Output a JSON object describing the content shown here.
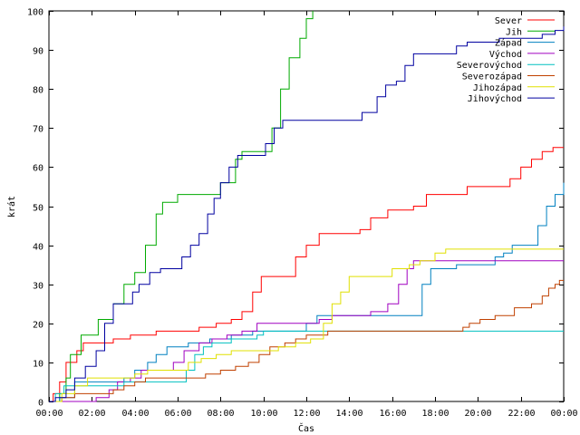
{
  "chart_data": {
    "type": "line",
    "title": "",
    "xlabel": "Čas",
    "ylabel": "krát",
    "xlim": [
      0,
      24
    ],
    "ylim": [
      0,
      100
    ],
    "x_ticks": [
      0,
      2,
      4,
      6,
      8,
      10,
      12,
      14,
      16,
      18,
      20,
      22,
      24
    ],
    "x_tick_labels": [
      "00:00",
      "02:00",
      "04:00",
      "06:00",
      "08:00",
      "10:00",
      "12:00",
      "14:00",
      "16:00",
      "18:00",
      "20:00",
      "22:00",
      "00:00"
    ],
    "y_ticks": [
      0,
      10,
      20,
      30,
      40,
      50,
      60,
      70,
      80,
      90,
      100
    ],
    "grid": false,
    "legend_position": "top-right",
    "step": true,
    "series": [
      {
        "name": "Sever",
        "color": "#ff0000",
        "points": [
          [
            0,
            0
          ],
          [
            0.2,
            2
          ],
          [
            0.5,
            5
          ],
          [
            0.8,
            10
          ],
          [
            1.3,
            13
          ],
          [
            1.6,
            15
          ],
          [
            2.5,
            15
          ],
          [
            3.0,
            16
          ],
          [
            3.8,
            17
          ],
          [
            5.0,
            18
          ],
          [
            7.0,
            19
          ],
          [
            7.8,
            20
          ],
          [
            8.5,
            21
          ],
          [
            9.0,
            23
          ],
          [
            9.5,
            28
          ],
          [
            9.9,
            32
          ],
          [
            11.0,
            32
          ],
          [
            11.5,
            37
          ],
          [
            12.0,
            40
          ],
          [
            12.6,
            43
          ],
          [
            14.5,
            44
          ],
          [
            15.0,
            47
          ],
          [
            15.8,
            49
          ],
          [
            17.0,
            50
          ],
          [
            17.6,
            53
          ],
          [
            19.5,
            55
          ],
          [
            21.5,
            57
          ],
          [
            22.0,
            60
          ],
          [
            22.5,
            62
          ],
          [
            23.0,
            64
          ],
          [
            23.5,
            65
          ],
          [
            24.0,
            65
          ]
        ]
      },
      {
        "name": "Jih",
        "color": "#00aa00",
        "points": [
          [
            0,
            0
          ],
          [
            0.5,
            2
          ],
          [
            0.8,
            6
          ],
          [
            1.0,
            12
          ],
          [
            1.5,
            17
          ],
          [
            2.0,
            17
          ],
          [
            2.3,
            21
          ],
          [
            3.0,
            25
          ],
          [
            3.5,
            30
          ],
          [
            4.0,
            33
          ],
          [
            4.5,
            40
          ],
          [
            5.0,
            48
          ],
          [
            5.3,
            51
          ],
          [
            6.0,
            53
          ],
          [
            8.0,
            56
          ],
          [
            8.7,
            62
          ],
          [
            9.0,
            64
          ],
          [
            10.0,
            64
          ],
          [
            10.4,
            70
          ],
          [
            10.8,
            80
          ],
          [
            11.2,
            88
          ],
          [
            11.7,
            93
          ],
          [
            12.0,
            98
          ],
          [
            12.3,
            100
          ]
        ]
      },
      {
        "name": "Západ",
        "color": "#0080c0",
        "points": [
          [
            0,
            0
          ],
          [
            0.5,
            1
          ],
          [
            1.2,
            5
          ],
          [
            2.5,
            5
          ],
          [
            3.5,
            6
          ],
          [
            4.0,
            8
          ],
          [
            4.6,
            10
          ],
          [
            5.0,
            12
          ],
          [
            5.5,
            14
          ],
          [
            6.5,
            15
          ],
          [
            7.5,
            16
          ],
          [
            8.5,
            17
          ],
          [
            9.5,
            18
          ],
          [
            10.5,
            18
          ],
          [
            12.0,
            20
          ],
          [
            12.5,
            22
          ],
          [
            17.0,
            22
          ],
          [
            17.4,
            30
          ],
          [
            17.8,
            34
          ],
          [
            19.0,
            35
          ],
          [
            20.0,
            35
          ],
          [
            20.8,
            37
          ],
          [
            21.2,
            38
          ],
          [
            21.6,
            40
          ],
          [
            22.8,
            45
          ],
          [
            23.2,
            50
          ],
          [
            23.6,
            53
          ],
          [
            24.0,
            56
          ]
        ]
      },
      {
        "name": "Východ",
        "color": "#a000c0",
        "points": [
          [
            0,
            0
          ],
          [
            1.0,
            0
          ],
          [
            2.2,
            1
          ],
          [
            2.8,
            3
          ],
          [
            3.2,
            5
          ],
          [
            3.8,
            6
          ],
          [
            4.3,
            8
          ],
          [
            5.0,
            8
          ],
          [
            5.8,
            10
          ],
          [
            6.3,
            13
          ],
          [
            7.0,
            15
          ],
          [
            7.6,
            16
          ],
          [
            8.3,
            17
          ],
          [
            9.0,
            18
          ],
          [
            9.7,
            20
          ],
          [
            10.5,
            20
          ],
          [
            11.5,
            20
          ],
          [
            12.0,
            20
          ],
          [
            12.6,
            21
          ],
          [
            13.2,
            22
          ],
          [
            14.5,
            22
          ],
          [
            15.0,
            23
          ],
          [
            15.8,
            25
          ],
          [
            16.3,
            30
          ],
          [
            16.7,
            34
          ],
          [
            17.0,
            36
          ],
          [
            24.0,
            36
          ]
        ]
      },
      {
        "name": "Severovýchod",
        "color": "#00c0c0",
        "points": [
          [
            0,
            0
          ],
          [
            0.3,
            2
          ],
          [
            0.7,
            4
          ],
          [
            1.5,
            4
          ],
          [
            2.0,
            4
          ],
          [
            2.8,
            4
          ],
          [
            3.5,
            5
          ],
          [
            4.5,
            5
          ],
          [
            5.0,
            5
          ],
          [
            6.0,
            5
          ],
          [
            6.4,
            8
          ],
          [
            6.8,
            12
          ],
          [
            7.2,
            14
          ],
          [
            7.6,
            15
          ],
          [
            8.0,
            15
          ],
          [
            8.5,
            16
          ],
          [
            9.2,
            16
          ],
          [
            9.7,
            17
          ],
          [
            10.0,
            18
          ],
          [
            11.0,
            18
          ],
          [
            17.0,
            18
          ],
          [
            24.0,
            18
          ]
        ]
      },
      {
        "name": "Severozápad",
        "color": "#c04000",
        "points": [
          [
            0,
            0
          ],
          [
            0.6,
            1
          ],
          [
            1.2,
            2
          ],
          [
            2.0,
            2
          ],
          [
            3.0,
            3
          ],
          [
            3.5,
            4
          ],
          [
            4.0,
            5
          ],
          [
            4.5,
            6
          ],
          [
            5.5,
            6
          ],
          [
            6.5,
            6
          ],
          [
            7.3,
            7
          ],
          [
            8.0,
            8
          ],
          [
            8.7,
            9
          ],
          [
            9.3,
            10
          ],
          [
            9.8,
            12
          ],
          [
            10.3,
            14
          ],
          [
            11.0,
            15
          ],
          [
            11.5,
            16
          ],
          [
            12.0,
            17
          ],
          [
            13.0,
            18
          ],
          [
            14.5,
            18
          ],
          [
            18.0,
            18
          ],
          [
            19.3,
            19
          ],
          [
            19.6,
            20
          ],
          [
            20.1,
            21
          ],
          [
            20.8,
            22
          ],
          [
            21.7,
            24
          ],
          [
            22.5,
            25
          ],
          [
            23.0,
            27
          ],
          [
            23.3,
            29
          ],
          [
            23.6,
            30
          ],
          [
            23.8,
            31
          ],
          [
            24.0,
            31
          ]
        ]
      },
      {
        "name": "Jihozápad",
        "color": "#e0e000",
        "points": [
          [
            0,
            0
          ],
          [
            0.6,
            2
          ],
          [
            1.2,
            4
          ],
          [
            1.8,
            6
          ],
          [
            2.5,
            6
          ],
          [
            3.5,
            6
          ],
          [
            4.0,
            7
          ],
          [
            4.6,
            8
          ],
          [
            5.4,
            8
          ],
          [
            6.0,
            8
          ],
          [
            6.5,
            10
          ],
          [
            7.1,
            11
          ],
          [
            7.8,
            12
          ],
          [
            8.5,
            13
          ],
          [
            9.0,
            13
          ],
          [
            10.0,
            13
          ],
          [
            10.7,
            14
          ],
          [
            11.5,
            15
          ],
          [
            12.2,
            16
          ],
          [
            12.8,
            20
          ],
          [
            13.2,
            25
          ],
          [
            13.6,
            28
          ],
          [
            14.0,
            32
          ],
          [
            15.5,
            32
          ],
          [
            16.0,
            34
          ],
          [
            16.8,
            35
          ],
          [
            17.3,
            36
          ],
          [
            18.0,
            38
          ],
          [
            18.5,
            39
          ],
          [
            24.0,
            39
          ]
        ]
      },
      {
        "name": "Jihovýchod",
        "color": "#0000a0",
        "points": [
          [
            0,
            0
          ],
          [
            0.3,
            1
          ],
          [
            0.8,
            3
          ],
          [
            1.2,
            6
          ],
          [
            1.7,
            9
          ],
          [
            2.2,
            13
          ],
          [
            2.6,
            20
          ],
          [
            3.0,
            25
          ],
          [
            3.5,
            25
          ],
          [
            3.9,
            28
          ],
          [
            4.2,
            30
          ],
          [
            4.7,
            33
          ],
          [
            5.2,
            34
          ],
          [
            5.7,
            34
          ],
          [
            6.2,
            37
          ],
          [
            6.6,
            40
          ],
          [
            7.0,
            43
          ],
          [
            7.4,
            48
          ],
          [
            7.7,
            52
          ],
          [
            8.0,
            56
          ],
          [
            8.4,
            60
          ],
          [
            8.8,
            63
          ],
          [
            9.8,
            63
          ],
          [
            10.1,
            66
          ],
          [
            10.5,
            70
          ],
          [
            10.9,
            72
          ],
          [
            14.0,
            72
          ],
          [
            14.6,
            74
          ],
          [
            15.3,
            78
          ],
          [
            15.7,
            81
          ],
          [
            16.2,
            82
          ],
          [
            16.6,
            86
          ],
          [
            17.0,
            89
          ],
          [
            18.5,
            89
          ],
          [
            19.0,
            91
          ],
          [
            19.5,
            92
          ],
          [
            21.0,
            93
          ],
          [
            22.5,
            93
          ],
          [
            23.0,
            94
          ],
          [
            23.6,
            95
          ],
          [
            24.0,
            96
          ]
        ]
      }
    ]
  }
}
